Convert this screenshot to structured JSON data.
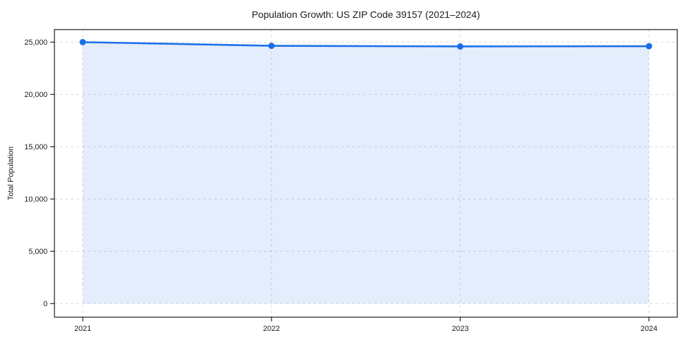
{
  "chart_data": {
    "type": "area",
    "title": "Population Growth: US ZIP Code 39157 (2021–2024)",
    "xlabel": "",
    "ylabel": "Total Population",
    "categories": [
      "2021",
      "2022",
      "2023",
      "2024"
    ],
    "x": [
      2021,
      2022,
      2023,
      2024
    ],
    "series": [
      {
        "name": "Total Population",
        "values": [
          25000,
          24650,
          24590,
          24610
        ]
      }
    ],
    "xlim": [
      2020.85,
      2024.15
    ],
    "ylim": [
      -1300,
      26200
    ],
    "yticks": [
      0,
      5000,
      10000,
      15000,
      20000,
      25000
    ],
    "ytick_labels": [
      "0",
      "5,000",
      "10,000",
      "15,000",
      "20,000",
      "25,000"
    ],
    "grid": true,
    "grid_style": "dashed",
    "legend_position": "none",
    "fill_to_value": 0,
    "colors": {
      "line": "#1a6ee8",
      "marker": "#1a6ee8",
      "fill_opacity": "0.12",
      "grid": "#d9d9d9",
      "frame": "#1c1c1c",
      "text": "#1a1a1a",
      "plot_bg": "#ffffff",
      "page_bg": "#ffffff"
    }
  }
}
